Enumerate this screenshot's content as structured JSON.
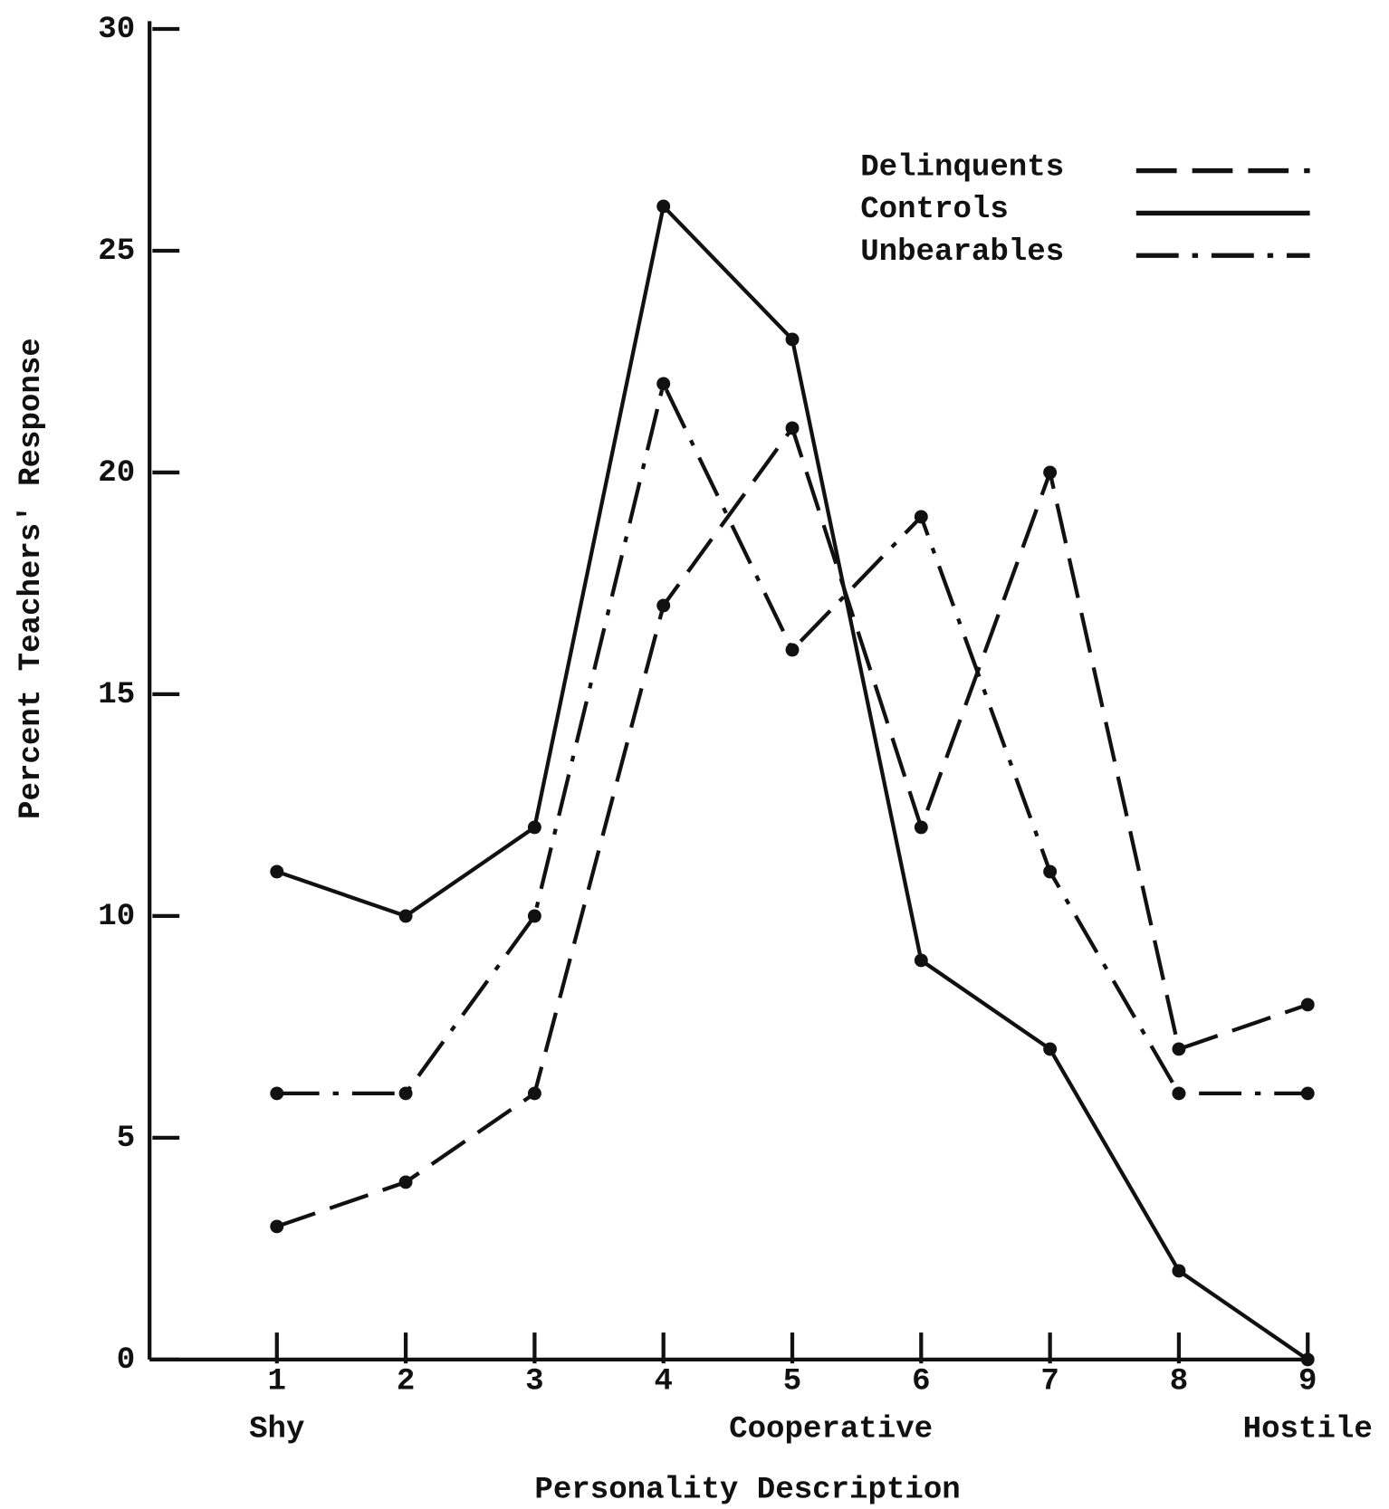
{
  "chart_data": {
    "type": "line",
    "y_label": "Percent Teachers' Response",
    "x_label": "Personality Description",
    "categories": [
      "1",
      "2",
      "3",
      "4",
      "5",
      "6",
      "7",
      "8",
      "9"
    ],
    "category_descriptors": [
      "Shy",
      "Cooperative",
      "Hostile"
    ],
    "ylim": [
      0,
      30
    ],
    "yticks": [
      0,
      5,
      10,
      15,
      20,
      25,
      30
    ],
    "legend": "upper right",
    "series": [
      {
        "name": "Delinquents",
        "color": "#111111",
        "linestyle": "dashed",
        "values": [
          3,
          4,
          6,
          17,
          21,
          12,
          20,
          7,
          8
        ]
      },
      {
        "name": "Controls",
        "color": "#111111",
        "linestyle": "solid",
        "values": [
          11,
          10,
          12,
          26,
          23,
          9,
          7,
          2,
          0
        ]
      },
      {
        "name": "Unbearables",
        "color": "#111111",
        "linestyle": "dashdot",
        "values": [
          6,
          6,
          10,
          22,
          16,
          19,
          11,
          6,
          6
        ]
      }
    ]
  }
}
